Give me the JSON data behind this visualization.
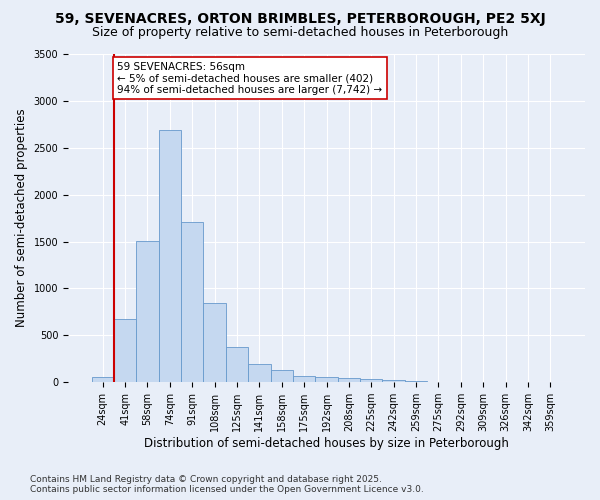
{
  "title_line1": "59, SEVENACRES, ORTON BRIMBLES, PETERBOROUGH, PE2 5XJ",
  "title_line2": "Size of property relative to semi-detached houses in Peterborough",
  "xlabel": "Distribution of semi-detached houses by size in Peterborough",
  "ylabel": "Number of semi-detached properties",
  "categories": [
    "24sqm",
    "41sqm",
    "58sqm",
    "74sqm",
    "91sqm",
    "108sqm",
    "125sqm",
    "141sqm",
    "158sqm",
    "175sqm",
    "192sqm",
    "208sqm",
    "225sqm",
    "242sqm",
    "259sqm",
    "275sqm",
    "292sqm",
    "309sqm",
    "326sqm",
    "342sqm",
    "359sqm"
  ],
  "values": [
    55,
    670,
    1510,
    2690,
    1710,
    850,
    375,
    195,
    130,
    70,
    55,
    40,
    30,
    20,
    10,
    5,
    5,
    5,
    3,
    2,
    2
  ],
  "bar_color": "#c5d8f0",
  "bar_edge_color": "#6699cc",
  "annotation_text": "59 SEVENACRES: 56sqm\n← 5% of semi-detached houses are smaller (402)\n94% of semi-detached houses are larger (7,742) →",
  "annotation_box_color": "#ffffff",
  "annotation_box_edge_color": "#cc0000",
  "vline_color": "#cc0000",
  "vline_x": 0.5,
  "ylim": [
    0,
    3500
  ],
  "yticks": [
    0,
    500,
    1000,
    1500,
    2000,
    2500,
    3000,
    3500
  ],
  "footer_line1": "Contains HM Land Registry data © Crown copyright and database right 2025.",
  "footer_line2": "Contains public sector information licensed under the Open Government Licence v3.0.",
  "background_color": "#e8eef8",
  "plot_bg_color": "#e8eef8",
  "grid_color": "#ffffff",
  "title_fontsize": 10,
  "subtitle_fontsize": 9,
  "axis_label_fontsize": 8.5,
  "tick_fontsize": 7,
  "annotation_fontsize": 7.5,
  "footer_fontsize": 6.5
}
